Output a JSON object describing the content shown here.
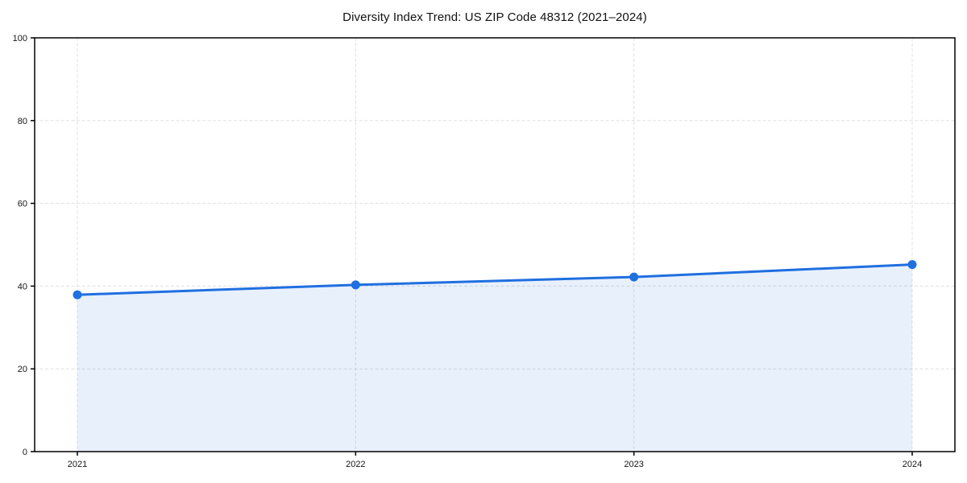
{
  "chart_data": {
    "type": "area",
    "title": "Diversity Index Trend: US ZIP Code 48312 (2021–2024)",
    "x": [
      2021,
      2022,
      2023,
      2024
    ],
    "x_tick_labels": [
      "2021",
      "2022",
      "2023",
      "2024"
    ],
    "series": [
      {
        "name": "Diversity Index",
        "values": [
          37.9,
          40.3,
          42.2,
          45.2
        ]
      }
    ],
    "xlabel": "",
    "ylabel": "",
    "ylim": [
      0,
      100
    ],
    "y_ticks": [
      0,
      20,
      40,
      60,
      80,
      100
    ],
    "grid": "dashed",
    "legend_position": "none",
    "colors": {
      "line": "#1f6fe0",
      "marker": "#1f6fe0",
      "fill": "#1f6fe0",
      "fill_opacity": 0.1,
      "gridline": "#e0e0e0",
      "axis": "#000000",
      "tick_label": "#151515",
      "background": "#ffffff"
    }
  }
}
